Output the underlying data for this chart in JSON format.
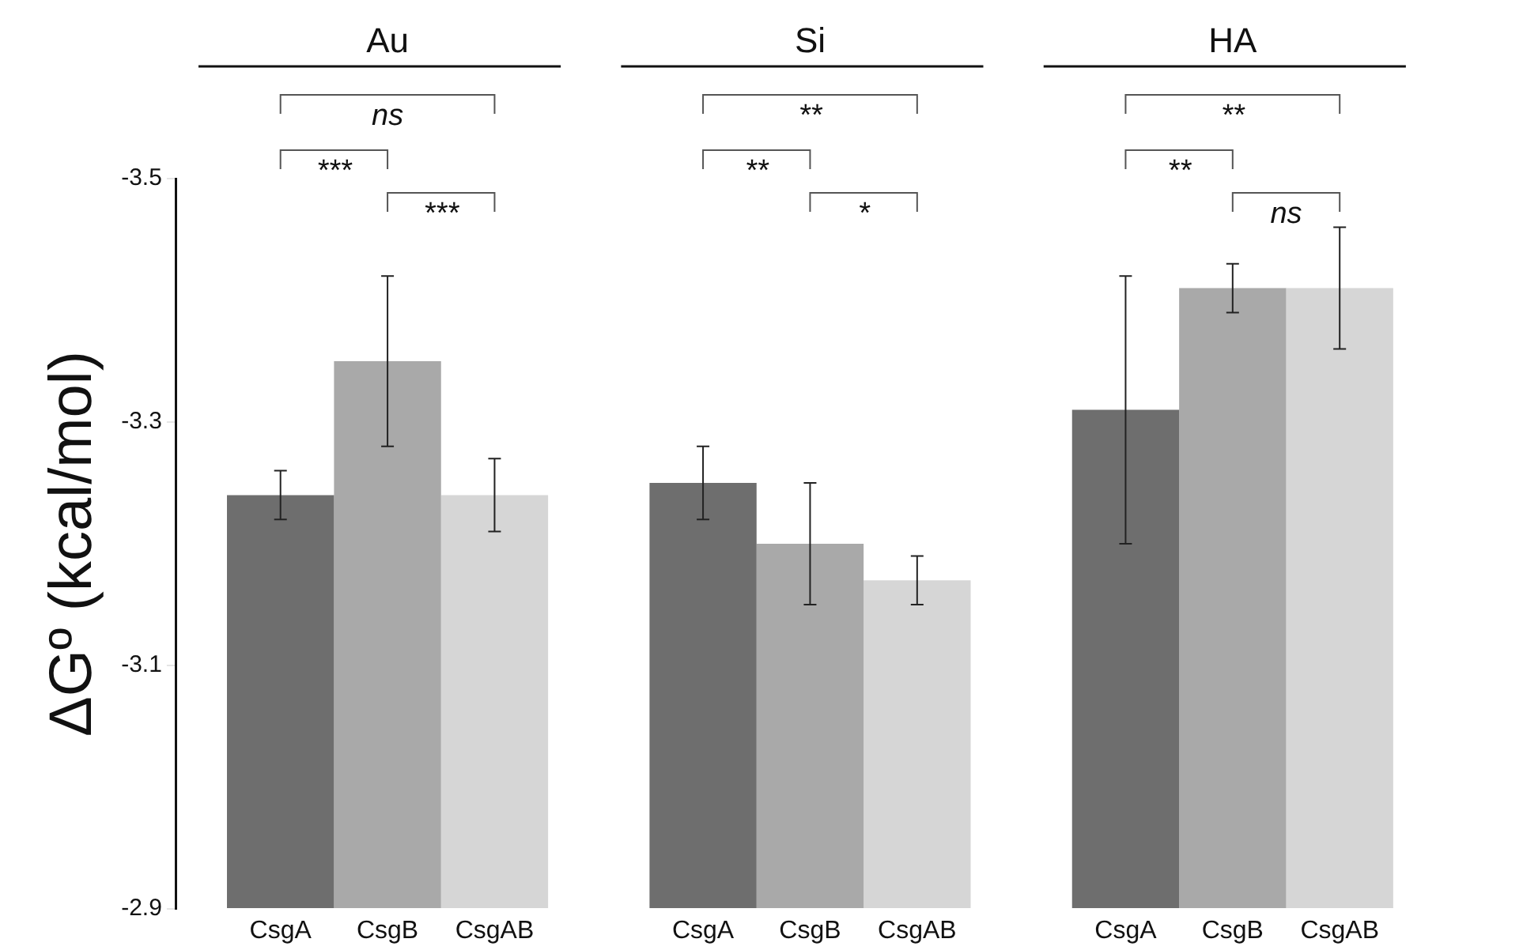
{
  "chart_data": {
    "type": "bar",
    "ylabel": "ΔGº (kcal/mol)",
    "categories": [
      "Au",
      "Si",
      "HA"
    ],
    "series": [
      {
        "name": "CsgA",
        "color": "#6e6e6e",
        "values": [
          -3.24,
          -3.25,
          -3.31
        ],
        "errors": [
          0.02,
          0.03,
          0.11
        ]
      },
      {
        "name": "CsgB",
        "color": "#a9a9a9",
        "values": [
          -3.35,
          -3.2,
          -3.41
        ],
        "errors": [
          0.07,
          0.05,
          0.02
        ]
      },
      {
        "name": "CsgAB",
        "color": "#d6d6d6",
        "values": [
          -3.24,
          -3.17,
          -3.41
        ],
        "errors": [
          0.03,
          0.02,
          0.05
        ]
      }
    ],
    "ylim": [
      -2.9,
      -3.5
    ],
    "yticks": [
      -3.5,
      -3.3,
      -3.1,
      -2.9
    ],
    "grid": false,
    "legend": false,
    "annotations": [
      "ns",
      "***",
      "***",
      "**",
      "**",
      "*",
      "**",
      "**",
      "ns"
    ]
  }
}
